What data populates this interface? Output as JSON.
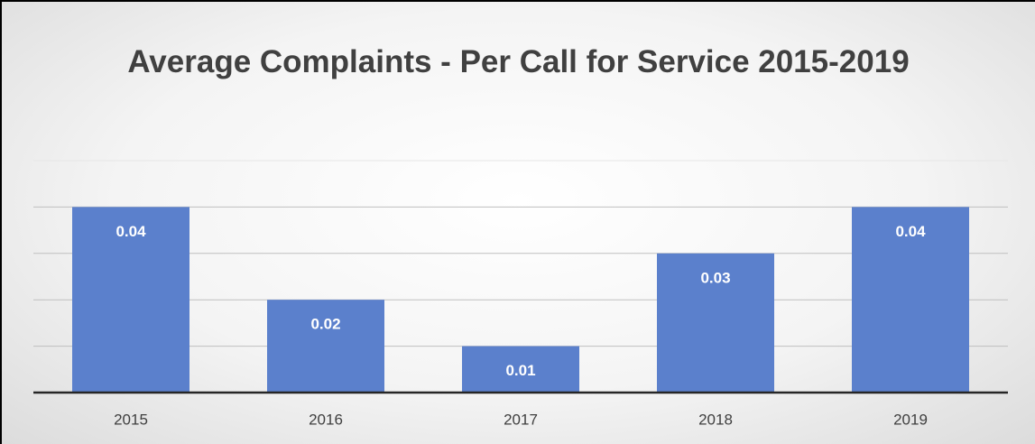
{
  "chart_data": {
    "type": "bar",
    "title": "Average Complaints - Per Call for Service 2015-2019",
    "categories": [
      "2015",
      "2016",
      "2017",
      "2018",
      "2019"
    ],
    "values": [
      0.04,
      0.02,
      0.01,
      0.03,
      0.04
    ],
    "color": "#5b80cc",
    "ylim": [
      0,
      0.05
    ],
    "yticks": [
      0,
      0.01,
      0.02,
      0.03,
      0.04,
      0.05
    ],
    "grid": true
  }
}
